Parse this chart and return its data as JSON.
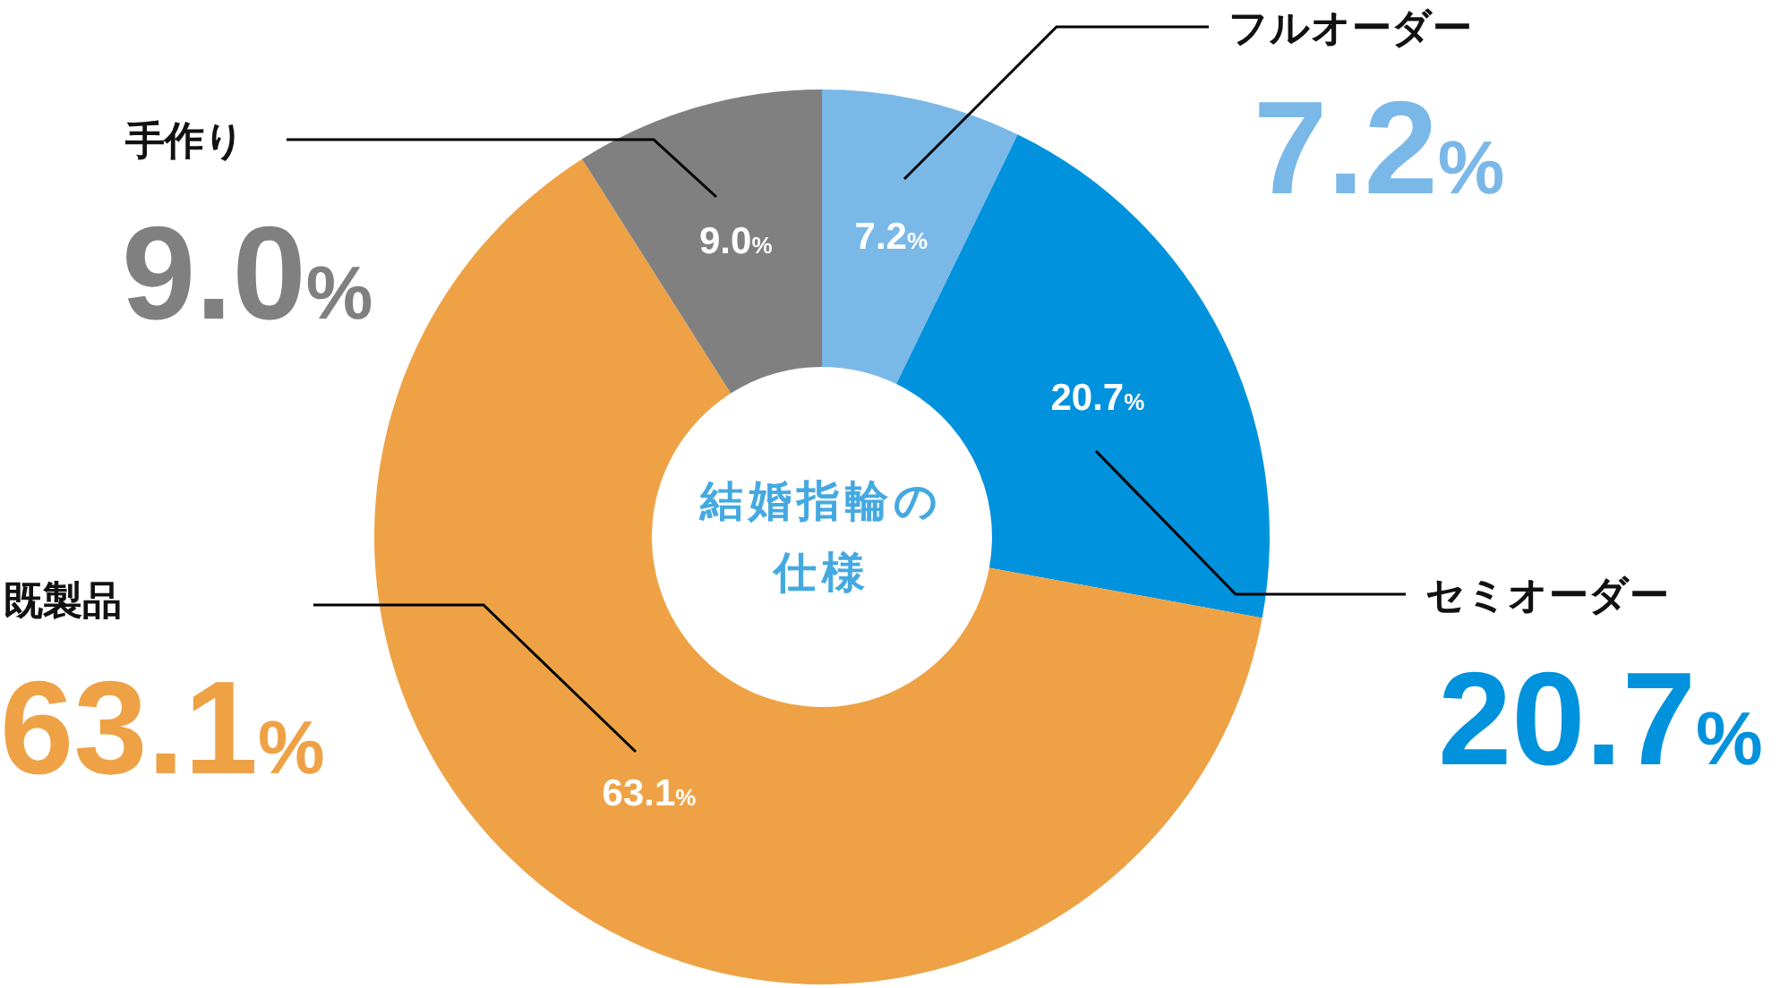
{
  "chart_data": {
    "type": "donut",
    "title": "結婚指輪の仕様",
    "categories": [
      "フルオーダー",
      "セミオーダー",
      "既製品",
      "手作り"
    ],
    "values": [
      7.2,
      20.7,
      63.1,
      9.0
    ],
    "colors": [
      "#7ab8e8",
      "#0092dc",
      "#eea245",
      "#808080"
    ],
    "value_labels": [
      "7.2%",
      "20.7%",
      "63.1%",
      "9.0%"
    ],
    "annotations": [
      "7.2%",
      "20.7%",
      "63.1%",
      "9.0%"
    ]
  }
}
